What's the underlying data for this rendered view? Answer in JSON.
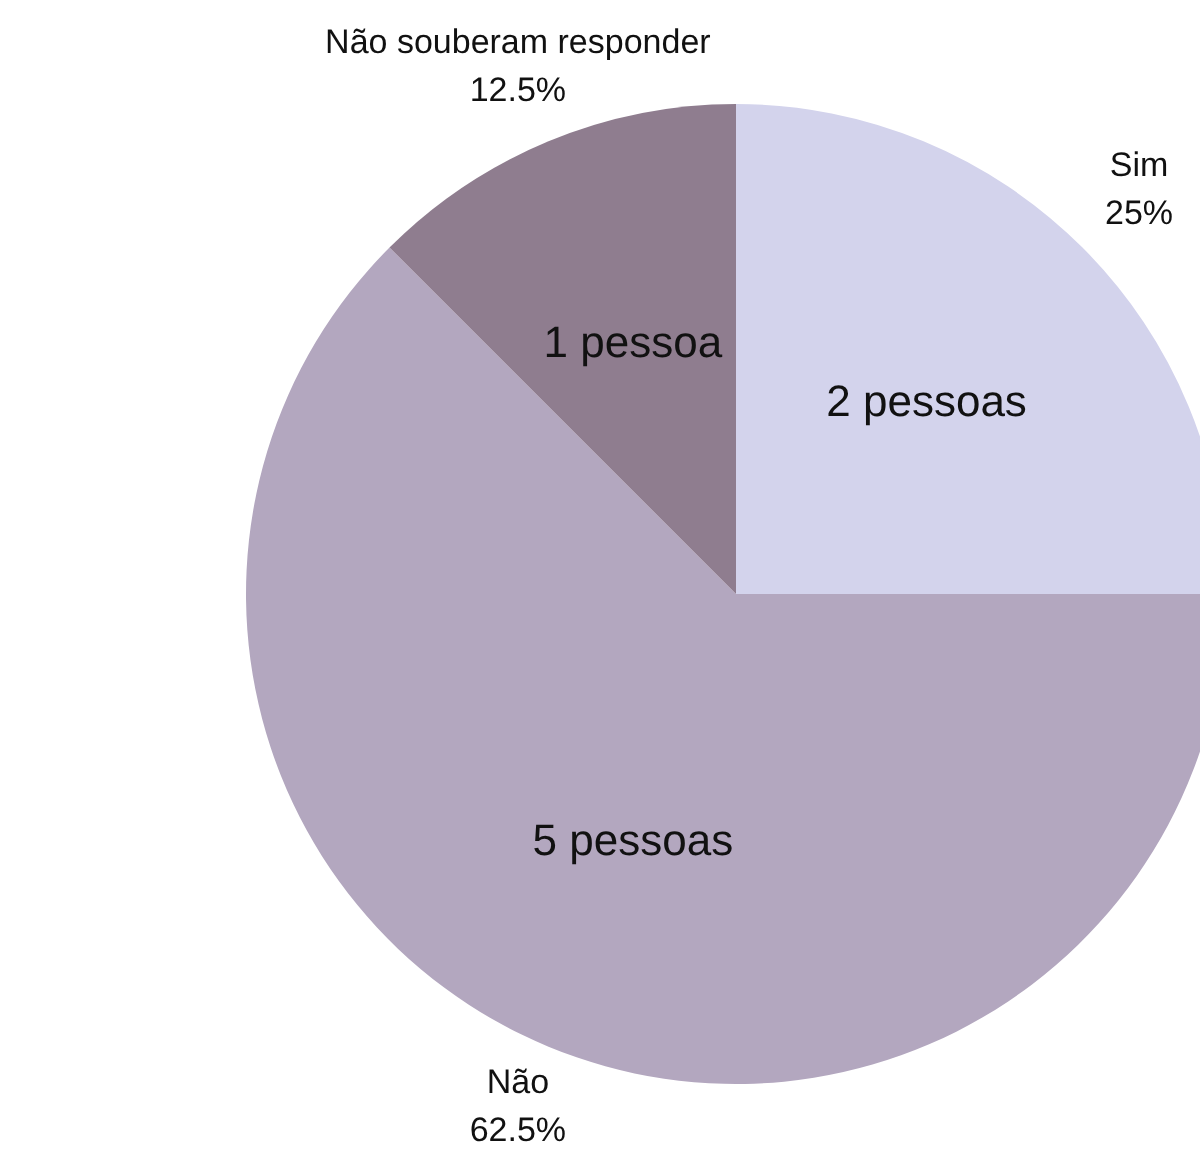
{
  "chart_data": {
    "type": "pie",
    "categories": [
      "Sim",
      "Não",
      "Não souberam responder"
    ],
    "values": [
      2,
      5,
      1
    ],
    "colors": [
      "#d3d3ec",
      "#b3a7bf",
      "#8f7d8f"
    ],
    "value_labels": [
      "2 pessoas",
      "5 pessoas",
      "1 pessoa"
    ],
    "annotations": [
      {
        "text": "25%",
        "x": "Sim"
      },
      {
        "text": "62.5%",
        "x": "Não"
      },
      {
        "text": "12.5%",
        "x": "Não souberam responder"
      }
    ],
    "legend": false
  }
}
